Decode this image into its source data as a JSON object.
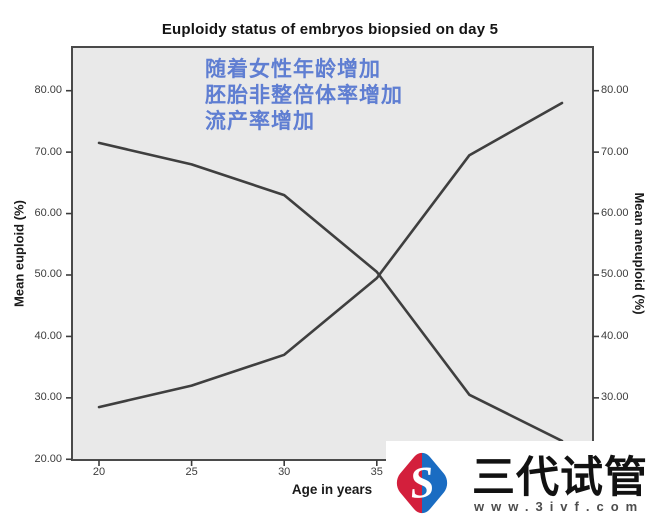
{
  "figure": {
    "title": "Euploidy status of embryos biopsied on day 5"
  },
  "annotation": {
    "lines": [
      "随着女性年龄增加",
      "胚胎非整倍体率增加",
      "流产率增加"
    ],
    "color": "#5f7ed2"
  },
  "chart_data": {
    "type": "line",
    "title": "Euploidy status of embryos biopsied on day 5",
    "xlabel": "Age in years",
    "ylabel_left": "Mean euploid (%)",
    "ylabel_right": "Mean aneuploid (%)",
    "x": [
      20,
      25,
      30,
      35,
      40,
      45
    ],
    "series": [
      {
        "name": "Mean euploid (%)",
        "axis": "left",
        "values": [
          71.5,
          68,
          63,
          50.5,
          30.5,
          23
        ]
      },
      {
        "name": "Mean aneuploid (%)",
        "axis": "right",
        "values": [
          28.5,
          32,
          37,
          49.5,
          69.5,
          78
        ]
      }
    ],
    "x_ticks": {
      "values": [
        20,
        25,
        30,
        35
      ],
      "labels": [
        "20",
        "25",
        "30",
        "35"
      ]
    },
    "y_ticks_left": {
      "values": [
        80,
        70,
        60,
        50,
        40,
        30,
        20
      ],
      "labels": [
        "80.00",
        "70.00",
        "60.00",
        "50.00",
        "40.00",
        "30.00",
        "20.00"
      ]
    },
    "y_ticks_right": {
      "values": [
        80,
        70,
        60,
        50,
        40,
        30
      ],
      "labels": [
        "80.00",
        "70.00",
        "60.00",
        "50.00",
        "40.00",
        "30.00"
      ]
    },
    "xlim": [
      20,
      45
    ],
    "ylim": [
      20,
      80
    ],
    "grid": false,
    "legend": "none",
    "plot_bg": "#e9e9e9",
    "line_color": "#3f3f3f",
    "tick_color": "#3c3c3c"
  },
  "watermark": {
    "brand": "三代试管",
    "url": "www.3ivf.com",
    "logo_blue": "#1a6cc2",
    "logo_red": "#d31f3c"
  }
}
